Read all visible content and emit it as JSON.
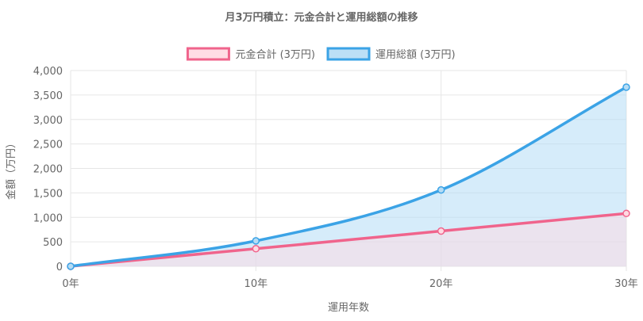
{
  "chart_data": {
    "type": "area",
    "title": "月3万円積立：元金合計と運用総額の推移",
    "xlabel": "運用年数",
    "ylabel": "金額（万円）",
    "x": [
      0,
      10,
      20,
      30
    ],
    "x_tick_labels": [
      "0年",
      "10年",
      "20年",
      "30年"
    ],
    "ylim": [
      0,
      4000
    ],
    "y_ticks": [
      0,
      500,
      1000,
      1500,
      2000,
      2500,
      3000,
      3500,
      4000
    ],
    "y_tick_labels": [
      "0",
      "500",
      "1,000",
      "1,500",
      "2,000",
      "2,500",
      "3,000",
      "3,500",
      "4,000"
    ],
    "grid": true,
    "legend_position": "top",
    "series": [
      {
        "name": "元金合計 (3万円)",
        "values": [
          0,
          360,
          720,
          1080
        ],
        "line_color": "#f0648c",
        "fill_color": "#ffd9e2",
        "fill_opacity": 0.5
      },
      {
        "name": "運用総額 (3万円)",
        "values": [
          0,
          520,
          1560,
          3660
        ],
        "line_color": "#3ba3e6",
        "fill_color": "#b5dcf5",
        "fill_opacity": 0.55
      }
    ]
  }
}
